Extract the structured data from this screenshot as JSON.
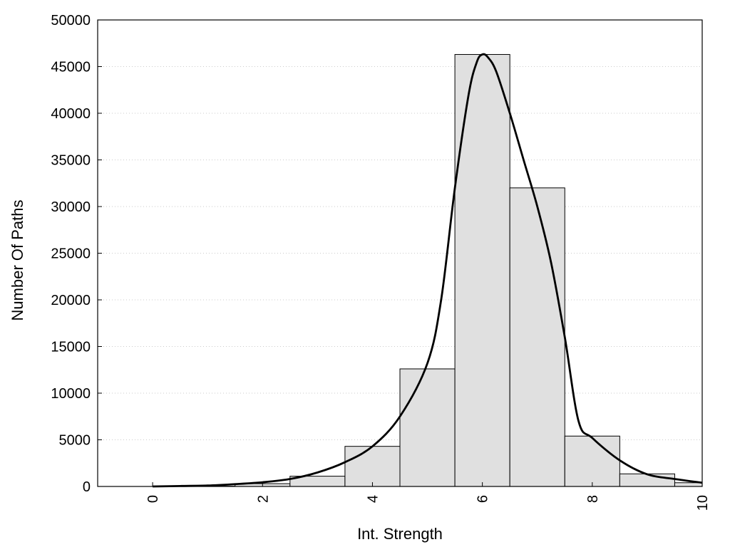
{
  "chart_data": {
    "type": "bar",
    "title": "",
    "xlabel": "Int. Strength",
    "ylabel": "Number Of Paths",
    "xlim": [
      -1,
      10
    ],
    "ylim": [
      0,
      50000
    ],
    "grid": true,
    "x_ticks": [
      0,
      2,
      4,
      6,
      8,
      10
    ],
    "y_ticks": [
      0,
      5000,
      10000,
      15000,
      20000,
      25000,
      30000,
      35000,
      40000,
      45000,
      50000
    ],
    "bar_width": 1,
    "bars": [
      {
        "x": 0,
        "value": 0
      },
      {
        "x": 1,
        "value": 30
      },
      {
        "x": 2,
        "value": 300
      },
      {
        "x": 3,
        "value": 1100
      },
      {
        "x": 4,
        "value": 4300
      },
      {
        "x": 5,
        "value": 12600
      },
      {
        "x": 6,
        "value": 46300
      },
      {
        "x": 7,
        "value": 32000
      },
      {
        "x": 8,
        "value": 5400
      },
      {
        "x": 9,
        "value": 1350
      },
      {
        "x": 10,
        "value": 400
      }
    ],
    "fit_curve": {
      "x": [
        0,
        0.5,
        1,
        1.5,
        2,
        2.5,
        3,
        3.5,
        4,
        4.5,
        5,
        5.25,
        5.5,
        5.75,
        5.9,
        6,
        6.1,
        6.25,
        6.5,
        6.75,
        7,
        7.25,
        7.5,
        7.75,
        8,
        8.5,
        9,
        9.5,
        10
      ],
      "y": [
        0,
        50,
        100,
        250,
        450,
        800,
        1500,
        2600,
        4300,
        7500,
        13200,
        20000,
        32000,
        42000,
        45500,
        46300,
        46000,
        44500,
        40000,
        35000,
        30000,
        24000,
        16000,
        7000,
        5200,
        2800,
        1300,
        800,
        400
      ]
    },
    "colors": {
      "bar_fill": "#e0e0e0",
      "bar_stroke": "#000000",
      "curve": "#000000",
      "grid": "#bbbbbb"
    }
  }
}
